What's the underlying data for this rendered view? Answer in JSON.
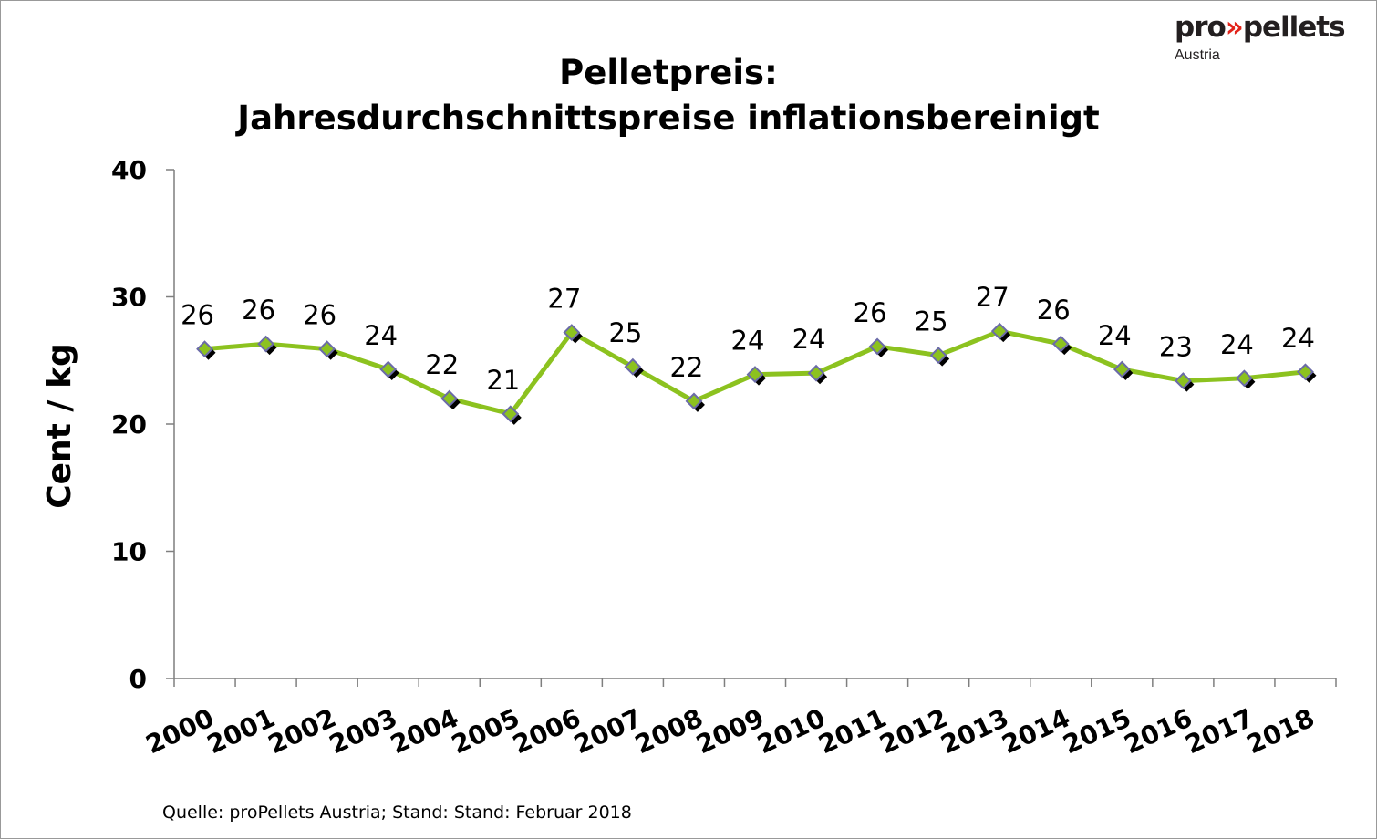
{
  "logo": {
    "brand_part1": "pro",
    "brand_arrows": "»",
    "brand_part2": "pellets",
    "subtitle": "Austria"
  },
  "footer": "Quelle: proPellets Austria; Stand: Stand: Februar 2018",
  "chart_data": {
    "type": "line",
    "title_line1": "Pelletpreis:",
    "title_line2": "Jahresdurchschnittspreise inflationsbereinigt",
    "xlabel": "",
    "ylabel": "Cent / kg",
    "ylim": [
      0,
      40
    ],
    "yticks": [
      0,
      10,
      20,
      30,
      40
    ],
    "grid": false,
    "legend": "none",
    "categories": [
      "2000",
      "2001",
      "2002",
      "2003",
      "2004",
      "2005",
      "2006",
      "2007",
      "2008",
      "2009",
      "2010",
      "2011",
      "2012",
      "2013",
      "2014",
      "2015",
      "2016",
      "2017",
      "2018"
    ],
    "values": [
      25.9,
      26.3,
      25.9,
      24.3,
      22.0,
      20.8,
      27.2,
      24.5,
      21.8,
      23.9,
      24.0,
      26.1,
      25.4,
      27.3,
      26.3,
      24.3,
      23.4,
      23.6,
      24.1
    ],
    "data_labels": [
      "26",
      "26",
      "26",
      "24",
      "22",
      "21",
      "27",
      "25",
      "22",
      "24",
      "24",
      "26",
      "25",
      "27",
      "26",
      "24",
      "23",
      "24",
      "24"
    ],
    "colors": {
      "line": "#8cc21f",
      "marker_fill": "#8cc21f",
      "marker_border": "#6b6ba8",
      "marker_shadow": "#000000",
      "axis": "#7f7f7f"
    }
  }
}
